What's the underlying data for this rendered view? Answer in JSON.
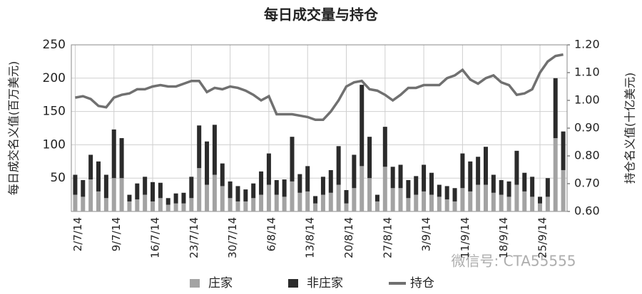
{
  "chart_data": {
    "type": "bar_line",
    "title": "每日成交量与持仓",
    "y_label": "每日成交名义值(百万美元)",
    "y2_label": "持仓名义值(十亿美元)",
    "watermark": "微信号: CTA55555",
    "categories": [
      "2/7/14",
      null,
      null,
      null,
      null,
      "9/7/14",
      null,
      null,
      null,
      null,
      "16/7/14",
      null,
      null,
      null,
      null,
      "23/7/14",
      null,
      null,
      null,
      null,
      "30/7/14",
      null,
      null,
      null,
      null,
      "6/8/14",
      null,
      null,
      null,
      null,
      "13/8/14",
      null,
      null,
      null,
      null,
      "20/8/14",
      null,
      null,
      null,
      null,
      "27/8/14",
      null,
      null,
      null,
      null,
      "3/9/14",
      null,
      null,
      null,
      null,
      "11/9/14",
      null,
      null,
      null,
      null,
      "18/9/14",
      null,
      null,
      null,
      null,
      "25/9/14",
      null,
      null,
      null
    ],
    "series": [
      {
        "name": "庄家",
        "color": "#a3a3a3",
        "values": [
          25,
          22,
          48,
          30,
          20,
          50,
          50,
          15,
          18,
          25,
          15,
          20,
          10,
          12,
          12,
          20,
          65,
          40,
          55,
          38,
          20,
          15,
          15,
          20,
          25,
          40,
          25,
          22,
          45,
          28,
          30,
          12,
          25,
          28,
          40,
          12,
          35,
          68,
          50,
          15,
          67,
          35,
          35,
          20,
          25,
          30,
          25,
          22,
          18,
          15,
          35,
          30,
          40,
          40,
          28,
          25,
          22,
          40,
          30,
          22,
          12,
          22,
          110,
          62
        ]
      },
      {
        "name": "非庄家",
        "color": "#2b2b2b",
        "values": [
          30,
          25,
          37,
          45,
          35,
          73,
          60,
          10,
          24,
          27,
          29,
          23,
          10,
          15,
          16,
          32,
          64,
          65,
          75,
          34,
          25,
          23,
          18,
          22,
          35,
          47,
          22,
          26,
          67,
          28,
          38,
          11,
          27,
          34,
          58,
          20,
          50,
          122,
          62,
          10,
          60,
          32,
          35,
          27,
          28,
          40,
          33,
          18,
          20,
          20,
          52,
          45,
          42,
          57,
          27,
          22,
          23,
          51,
          28,
          30,
          10,
          28,
          90,
          58
        ]
      },
      {
        "name": "持仓",
        "color": "#707070",
        "axis": "y2",
        "values": [
          1.01,
          1.015,
          1.005,
          0.98,
          0.975,
          1.01,
          1.02,
          1.025,
          1.04,
          1.04,
          1.05,
          1.055,
          1.05,
          1.05,
          1.06,
          1.07,
          1.07,
          1.03,
          1.045,
          1.04,
          1.05,
          1.045,
          1.035,
          1.02,
          1.0,
          1.015,
          0.95,
          0.95,
          0.95,
          0.945,
          0.94,
          0.93,
          0.93,
          0.96,
          1.0,
          1.05,
          1.065,
          1.07,
          1.04,
          1.035,
          1.02,
          1.0,
          1.02,
          1.045,
          1.045,
          1.055,
          1.055,
          1.055,
          1.08,
          1.09,
          1.11,
          1.075,
          1.06,
          1.08,
          1.09,
          1.065,
          1.055,
          1.02,
          1.025,
          1.04,
          1.1,
          1.14,
          1.16,
          1.165
        ]
      }
    ],
    "ylim": [
      0,
      250
    ],
    "yticks": [
      50,
      100,
      150,
      200,
      250
    ],
    "y2lim": [
      0.6,
      1.2
    ],
    "y2ticks": [
      {
        "value": 0.6,
        "label": "0.60"
      },
      {
        "value": 0.7,
        "label": "0.70"
      },
      {
        "value": 0.8,
        "label": "0.80"
      },
      {
        "value": 0.9,
        "label": "0.90"
      },
      {
        "value": 1.0,
        "label": "1.00"
      },
      {
        "value": 1.1,
        "label": "1.10"
      },
      {
        "value": 1.2,
        "label": "1.20"
      }
    ],
    "grid": true,
    "legend": "bottom"
  }
}
